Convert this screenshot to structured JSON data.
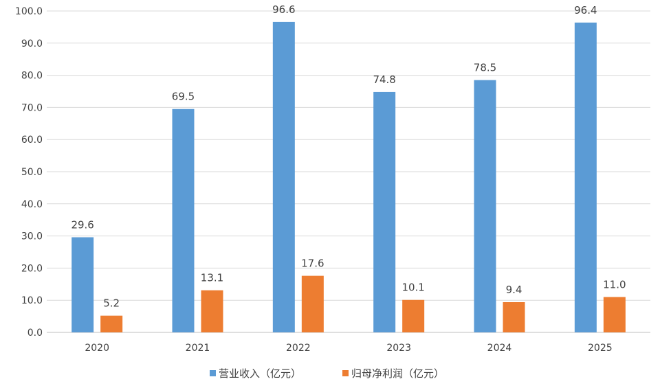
{
  "chart_data": {
    "type": "bar",
    "categories": [
      "2020",
      "2021",
      "2022",
      "2023",
      "2024",
      "2025"
    ],
    "series": [
      {
        "name": "营业收入（亿元）",
        "values": [
          29.6,
          69.5,
          96.6,
          74.8,
          78.5,
          96.4
        ],
        "labels": [
          "29.6",
          "69.5",
          "96.6",
          "74.8",
          "78.5",
          "96.4"
        ],
        "color": "#5B9BD5"
      },
      {
        "name": "归母净利润（亿元）",
        "values": [
          5.2,
          13.1,
          17.6,
          10.1,
          9.4,
          11.0
        ],
        "labels": [
          "5.2",
          "13.1",
          "17.6",
          "10.1",
          "9.4",
          "11.0"
        ],
        "color": "#ED7D31"
      }
    ],
    "ylim": [
      0,
      100
    ],
    "yticks": [
      "0.0",
      "10.0",
      "20.0",
      "30.0",
      "40.0",
      "50.0",
      "60.0",
      "70.0",
      "80.0",
      "90.0",
      "100.0"
    ],
    "grid": true,
    "legend": "bottom-center",
    "gridColor": "#d9d9d9",
    "axisColor": "#bfbfbf"
  }
}
